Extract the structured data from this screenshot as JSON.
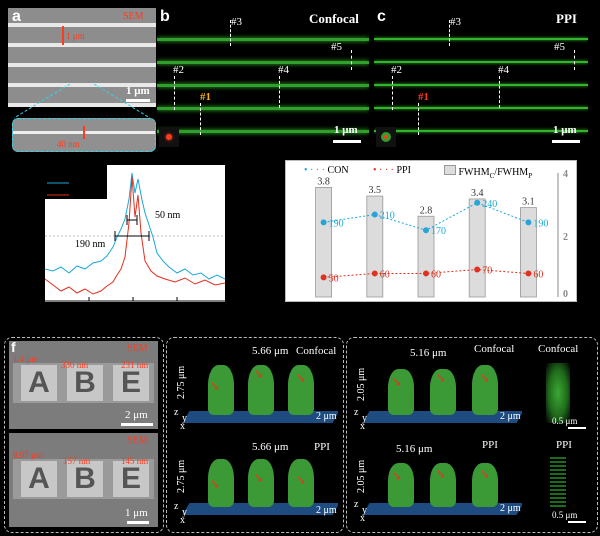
{
  "panel_a": {
    "label": "a",
    "method": "SEM",
    "pitch": "1 μm",
    "linewidth": "40 nm",
    "scale": "1 μm"
  },
  "panel_b": {
    "label": "b",
    "method": "Confocal",
    "scale": "1 μm",
    "markers": [
      "#1",
      "#2",
      "#3",
      "#4",
      "#5"
    ]
  },
  "panel_c": {
    "label": "c",
    "method": "PPI",
    "scale": "1 μm",
    "markers": [
      "#1",
      "#2",
      "#3",
      "#4",
      "#5"
    ]
  },
  "panel_d": {
    "legend_con": "N",
    "ann_50": "50 nm",
    "ann_190": "190 nm"
  },
  "panel_e": {
    "legend": {
      "con": "CON",
      "ppi": "PPI",
      "ratio_pre": "FWHM",
      "ratio_c": "C",
      "ratio_mid": "/FWHM",
      "ratio_p": "P"
    },
    "y_ticks": [
      "4",
      "2",
      "0"
    ]
  },
  "panel_f": {
    "label": "f",
    "top_method": "SEM",
    "top_height": "1.4 μm",
    "top_w1": "330 nm",
    "top_w2": "231 nm",
    "top_scale": "2 μm",
    "bot_method": "SEM",
    "bot_height": "0.97 μm",
    "bot_w1": "157 nm",
    "bot_w2": "145 nm",
    "bot_scale": "1 μm",
    "letters": [
      "A",
      "B",
      "E"
    ]
  },
  "panel_g": {
    "top_width": "5.66 μm",
    "top_method": "Confocal",
    "top_height": "2.75 μm",
    "top_depth": "2 μm",
    "bot_width": "5.66 μm",
    "bot_method": "PPI",
    "bot_height": "2.75 μm",
    "bot_depth": "2 μm",
    "axes": [
      "z",
      "y",
      "x"
    ]
  },
  "panel_h": {
    "top_width": "5.16 μm",
    "top_method": "Confocal",
    "top_height": "2.05 μm",
    "top_depth": "2 μm",
    "bot_width": "5.16 μm",
    "bot_method": "PPI",
    "bot_height": "2.05 μm",
    "bot_depth": "2 μm",
    "side_top": "Confocal",
    "side_bot": "PPI",
    "side_scale": "0.5 μm",
    "axes": [
      "z",
      "y",
      "x"
    ]
  },
  "chart_data": [
    {
      "type": "line",
      "series": [
        {
          "name": "CON",
          "color": "#1aa8d8"
        },
        {
          "name": "PPI",
          "color": "#e0301e"
        }
      ],
      "annotations": [
        "50 nm",
        "190 nm"
      ]
    },
    {
      "type": "bar",
      "categories": [
        "#1",
        "#2",
        "#3",
        "#4",
        "#5"
      ],
      "ratio": [
        3.8,
        3.5,
        2.8,
        3.4,
        3.1
      ],
      "series": [
        {
          "name": "CON",
          "values": [
            190,
            210,
            170,
            240,
            190
          ]
        },
        {
          "name": "PPI",
          "values": [
            50,
            60,
            60,
            70,
            60
          ]
        }
      ],
      "ylim": [
        0,
        4.3
      ]
    }
  ]
}
